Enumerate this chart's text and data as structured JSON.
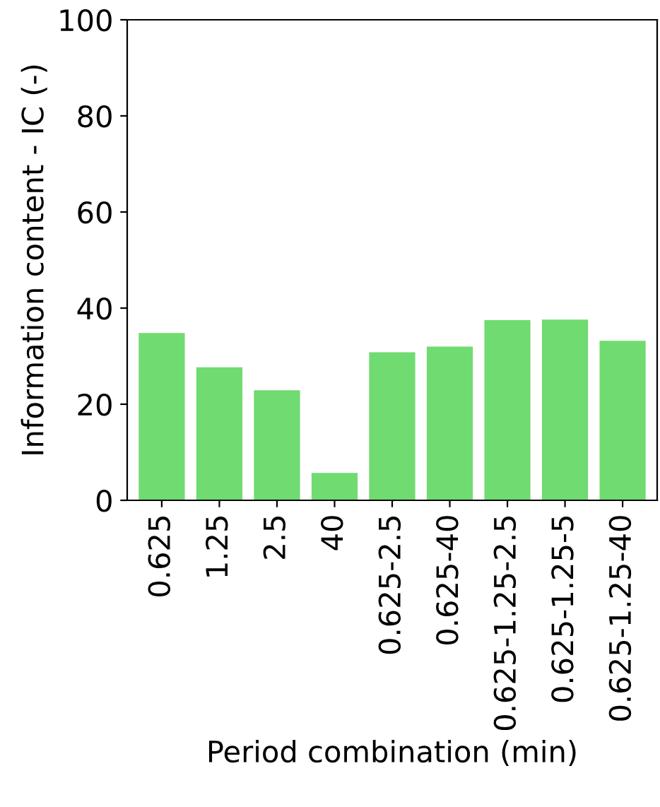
{
  "chart_data": {
    "type": "bar",
    "xlabel": "Period combination (min)",
    "ylabel": "Information content - IC (-)",
    "categories": [
      "0.625",
      "1.25",
      "2.5",
      "40",
      "0.625-2.5",
      "0.625-40",
      "0.625-1.25-2.5",
      "0.625-1.25-5",
      "0.625-1.25-40"
    ],
    "values": [
      34.8,
      27.7,
      22.9,
      5.7,
      30.8,
      32.0,
      37.5,
      37.6,
      33.2
    ],
    "color": "#70db70",
    "ylim": [
      0,
      100
    ],
    "yticks": [
      0,
      20,
      40,
      60,
      80,
      100
    ],
    "grid": false
  }
}
